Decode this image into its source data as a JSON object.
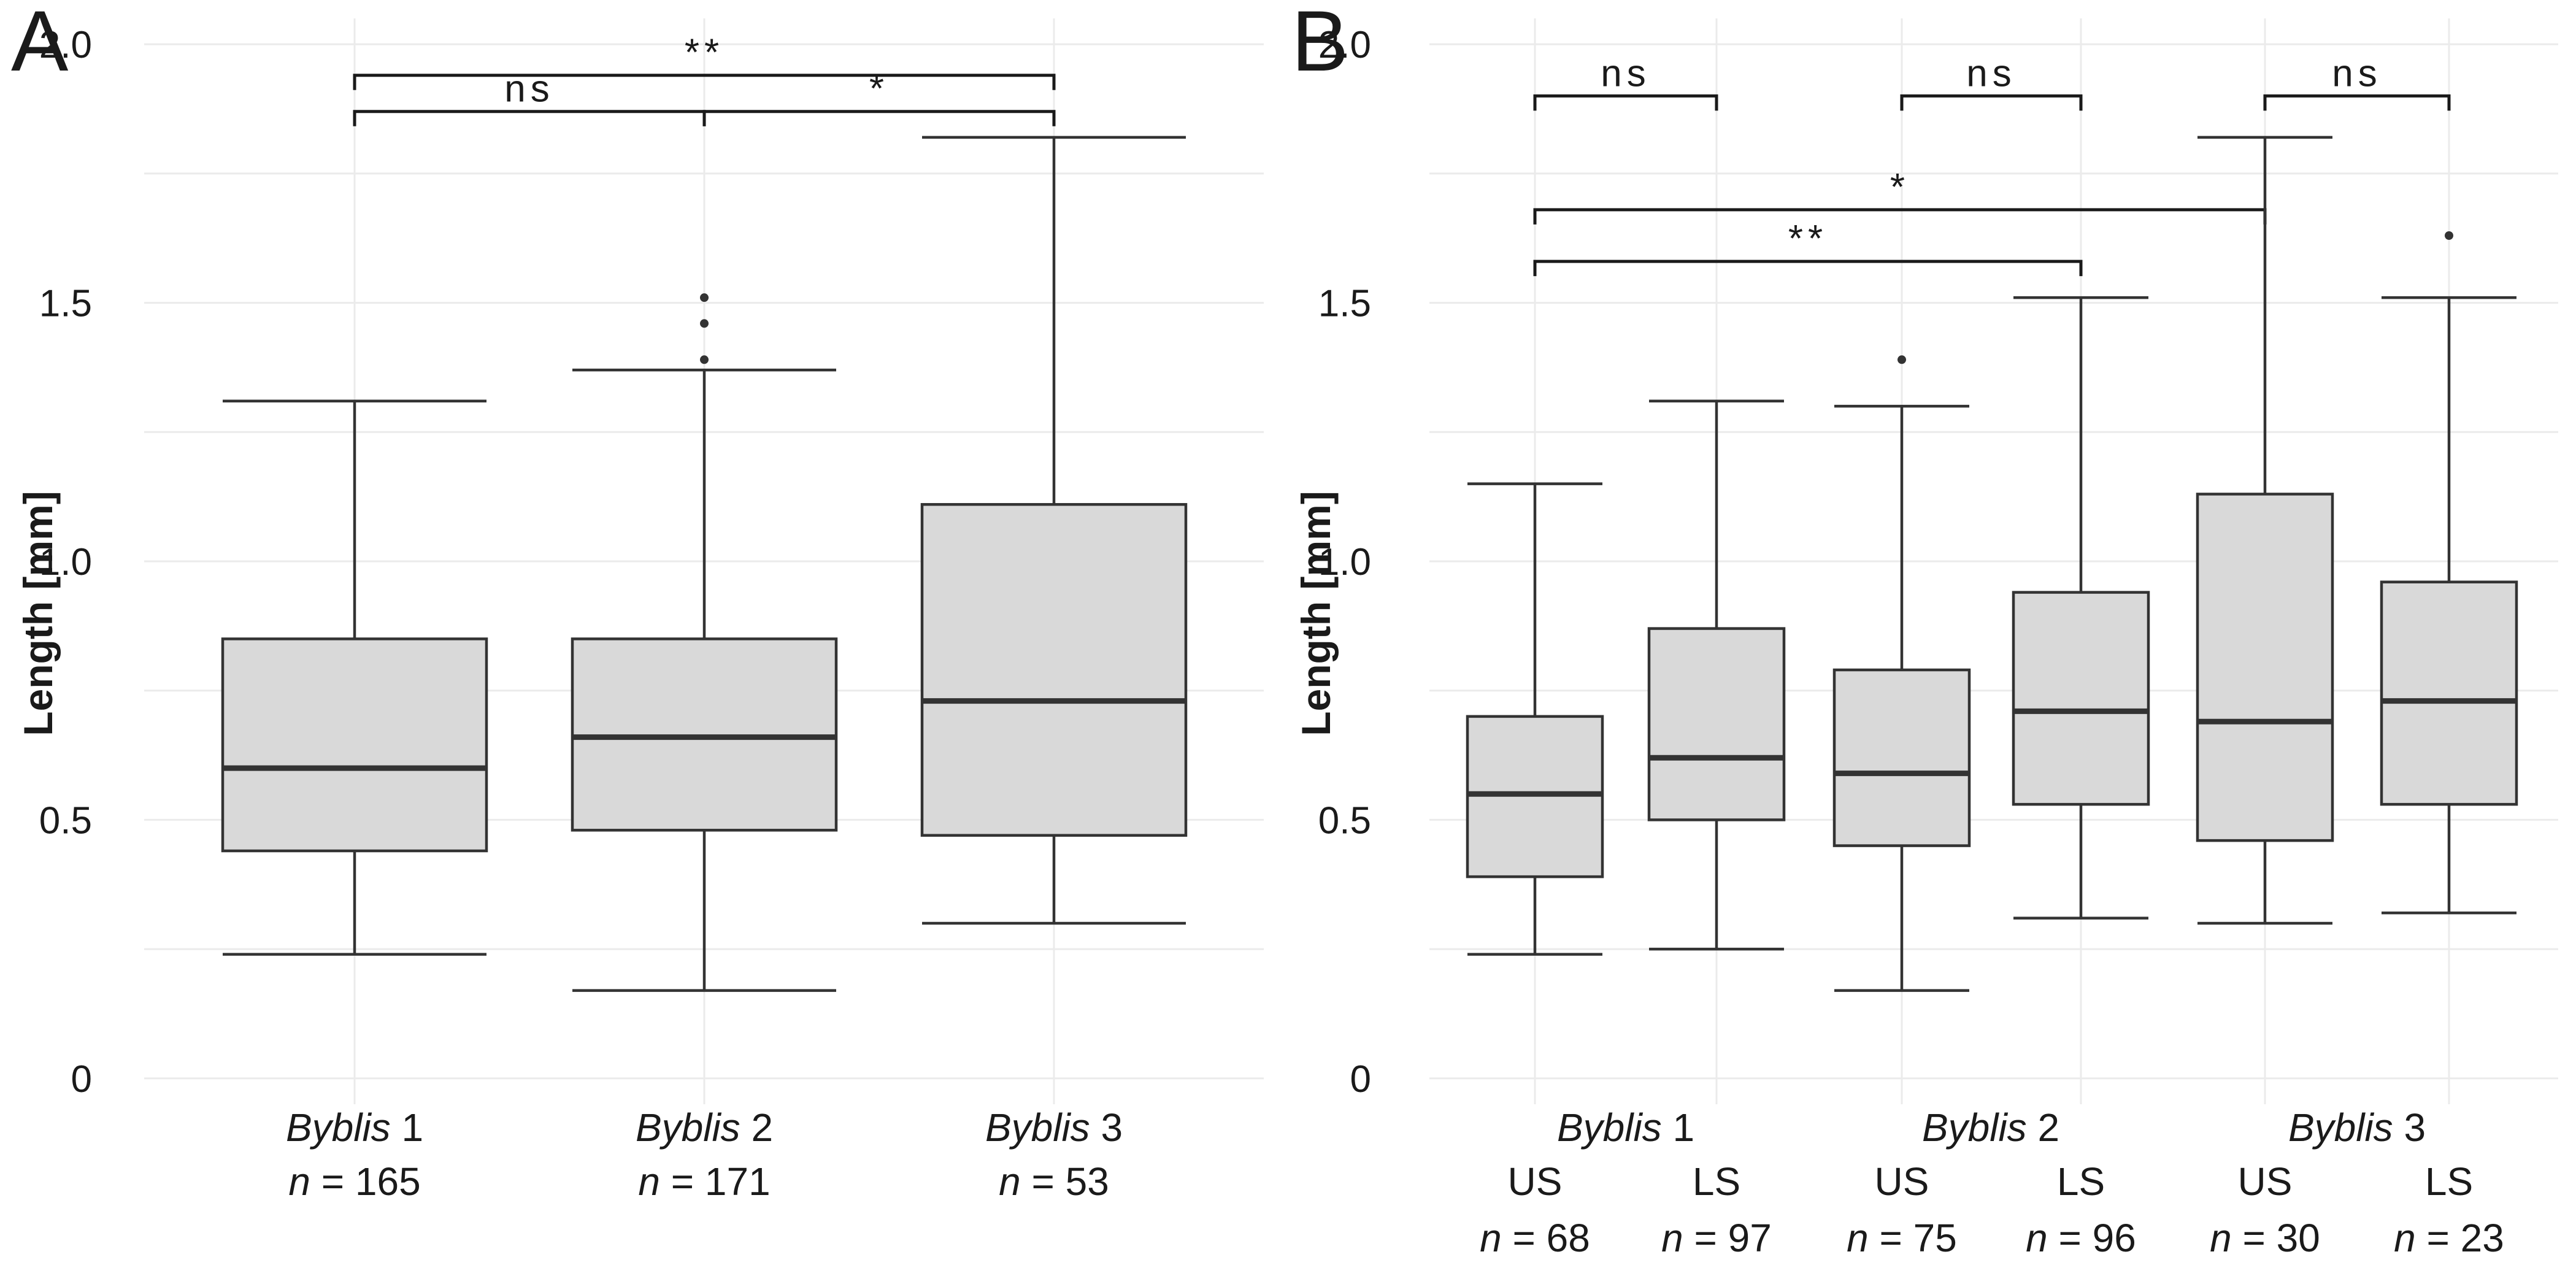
{
  "figure": {
    "panels": [
      {
        "id": "A",
        "panel_label": "A",
        "ylabel": "Length [mm]",
        "y_ticks": [
          {
            "v": 0,
            "label": "0"
          },
          {
            "v": 0.5,
            "label": "0.5"
          },
          {
            "v": 1.0,
            "label": "1.0"
          },
          {
            "v": 1.5,
            "label": "1.5"
          },
          {
            "v": 2.0,
            "label": "2.0"
          }
        ],
        "groups": [
          {
            "italic": "Byblis",
            "num": " 1",
            "n_label": "n",
            "n_value": " = 165"
          },
          {
            "italic": "Byblis",
            "num": " 2",
            "n_label": "n",
            "n_value": " = 171"
          },
          {
            "italic": "Byblis",
            "num": " 3",
            "n_label": "n",
            "n_value": " = 53"
          }
        ],
        "brackets": [
          {
            "label": "**"
          },
          {
            "label": "ns"
          },
          {
            "label": "*"
          }
        ]
      },
      {
        "id": "B",
        "panel_label": "B",
        "ylabel": "Length [mm]",
        "y_ticks": [
          {
            "v": 0,
            "label": "0"
          },
          {
            "v": 0.5,
            "label": "0.5"
          },
          {
            "v": 1.0,
            "label": "1.0"
          },
          {
            "v": 1.5,
            "label": "1.5"
          },
          {
            "v": 2.0,
            "label": "2.0"
          }
        ],
        "groups": [
          {
            "italic": "Byblis",
            "num": " 1"
          },
          {
            "italic": "Byblis",
            "num": " 2"
          },
          {
            "italic": "Byblis",
            "num": " 3"
          }
        ],
        "subgroups": [
          {
            "label": "US",
            "n_label": "n",
            "n_value": " = 68"
          },
          {
            "label": "LS",
            "n_label": "n",
            "n_value": " = 97"
          },
          {
            "label": "US",
            "n_label": "n",
            "n_value": " = 75"
          },
          {
            "label": "LS",
            "n_label": "n",
            "n_value": " = 96"
          },
          {
            "label": "US",
            "n_label": "n",
            "n_value": " = 30"
          },
          {
            "label": "LS",
            "n_label": "n",
            "n_value": " = 23"
          }
        ],
        "brackets": [
          {
            "label": "ns"
          },
          {
            "label": "ns"
          },
          {
            "label": "ns"
          },
          {
            "label": "*"
          },
          {
            "label": "**"
          }
        ]
      }
    ]
  },
  "chart_data": [
    {
      "type": "box",
      "panel": "A",
      "ylabel": "Length [mm]",
      "ylim": [
        0,
        2.0
      ],
      "grid": true,
      "categories": [
        "Byblis 1",
        "Byblis 2",
        "Byblis 3"
      ],
      "sample_sizes": [
        165,
        171,
        53
      ],
      "boxes": [
        {
          "category": "Byblis 1",
          "whisker_low": 0.24,
          "q1": 0.44,
          "median": 0.6,
          "q3": 0.85,
          "whisker_high": 1.31,
          "outliers": []
        },
        {
          "category": "Byblis 2",
          "whisker_low": 0.17,
          "q1": 0.48,
          "median": 0.66,
          "q3": 0.85,
          "whisker_high": 1.37,
          "outliers": [
            1.39,
            1.46,
            1.51
          ]
        },
        {
          "category": "Byblis 3",
          "whisker_low": 0.3,
          "q1": 0.47,
          "median": 0.73,
          "q3": 1.11,
          "whisker_high": 1.82,
          "outliers": []
        }
      ],
      "comparisons": [
        {
          "from": "Byblis 1",
          "to": "Byblis 3",
          "label": "**",
          "y": 1.94
        },
        {
          "from": "Byblis 1",
          "to": "Byblis 2",
          "label": "ns",
          "y": 1.87
        },
        {
          "from": "Byblis 2",
          "to": "Byblis 3",
          "label": "*",
          "y": 1.87
        }
      ]
    },
    {
      "type": "box",
      "panel": "B",
      "ylabel": "Length [mm]",
      "ylim": [
        0,
        2.0
      ],
      "grid": true,
      "categories": [
        "Byblis 1",
        "Byblis 2",
        "Byblis 3"
      ],
      "subcategories": [
        "US",
        "LS"
      ],
      "boxes": [
        {
          "category": "Byblis 1",
          "sub": "US",
          "n": 68,
          "whisker_low": 0.24,
          "q1": 0.39,
          "median": 0.55,
          "q3": 0.7,
          "whisker_high": 1.15,
          "outliers": []
        },
        {
          "category": "Byblis 1",
          "sub": "LS",
          "n": 97,
          "whisker_low": 0.25,
          "q1": 0.5,
          "median": 0.62,
          "q3": 0.87,
          "whisker_high": 1.31,
          "outliers": []
        },
        {
          "category": "Byblis 2",
          "sub": "US",
          "n": 75,
          "whisker_low": 0.17,
          "q1": 0.45,
          "median": 0.59,
          "q3": 0.79,
          "whisker_high": 1.3,
          "outliers": [
            1.39
          ]
        },
        {
          "category": "Byblis 2",
          "sub": "LS",
          "n": 96,
          "whisker_low": 0.31,
          "q1": 0.53,
          "median": 0.71,
          "q3": 0.94,
          "whisker_high": 1.51,
          "outliers": []
        },
        {
          "category": "Byblis 3",
          "sub": "US",
          "n": 30,
          "whisker_low": 0.3,
          "q1": 0.46,
          "median": 0.69,
          "q3": 1.13,
          "whisker_high": 1.82,
          "outliers": []
        },
        {
          "category": "Byblis 3",
          "sub": "LS",
          "n": 23,
          "whisker_low": 0.32,
          "q1": 0.53,
          "median": 0.73,
          "q3": 0.96,
          "whisker_high": 1.51,
          "outliers": [
            1.63
          ]
        }
      ],
      "comparisons": [
        {
          "from": "Byblis 1 US",
          "to": "Byblis 1 LS",
          "label": "ns",
          "y": 1.9
        },
        {
          "from": "Byblis 2 US",
          "to": "Byblis 2 LS",
          "label": "ns",
          "y": 1.9
        },
        {
          "from": "Byblis 3 US",
          "to": "Byblis 3 LS",
          "label": "ns",
          "y": 1.9
        },
        {
          "from": "Byblis 1 US",
          "to": "Byblis 3 US",
          "label": "*",
          "y": 1.68
        },
        {
          "from": "Byblis 1 US",
          "to": "Byblis 2 LS",
          "label": "**",
          "y": 1.58
        }
      ]
    }
  ]
}
